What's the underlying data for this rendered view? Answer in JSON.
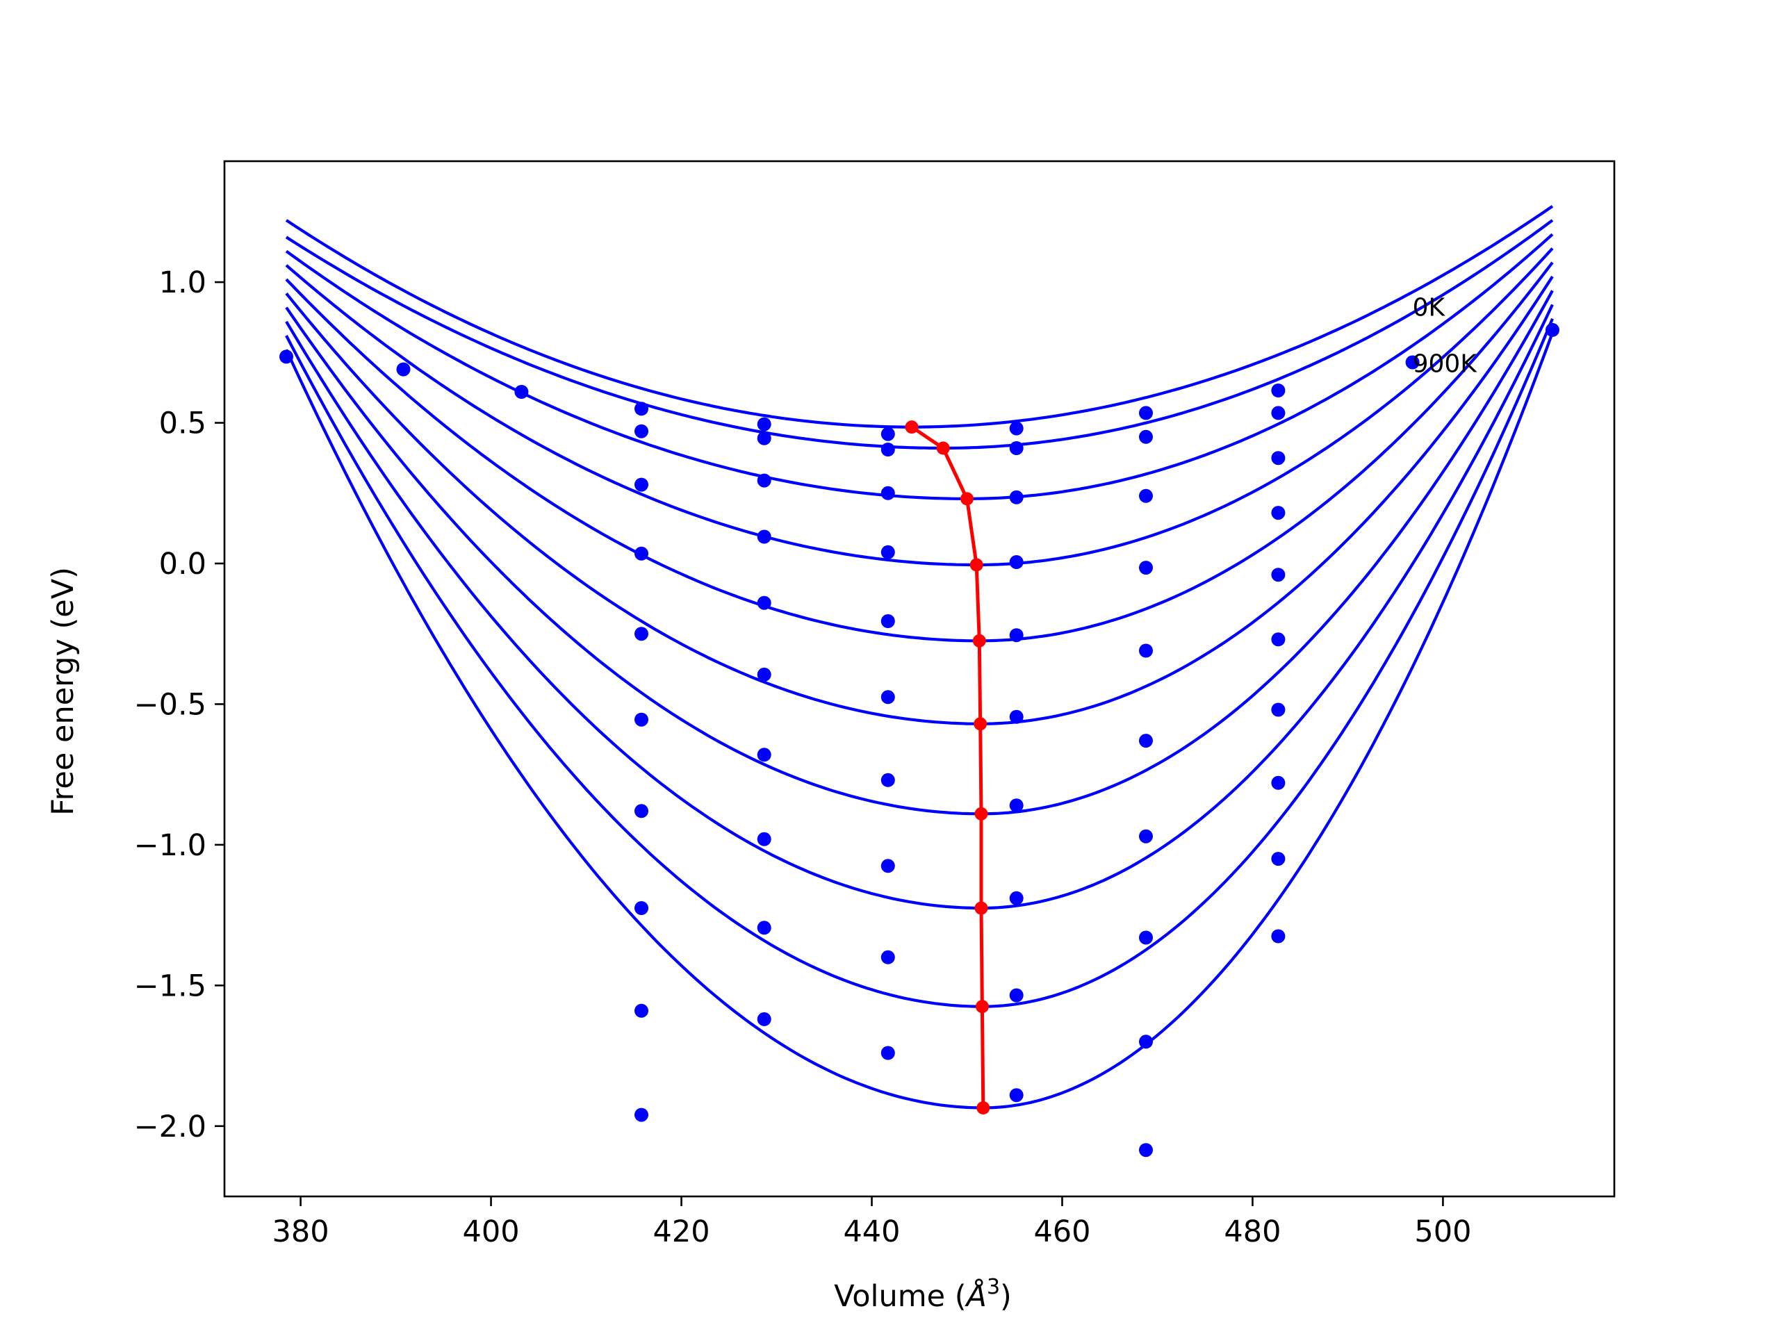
{
  "chart_data": {
    "type": "line",
    "title": "",
    "xlabel": "Volume (",
    "xlabel_symbol": "Å",
    "xlabel_exp": "3",
    "xlabel_close": ")",
    "ylabel": "Free energy (eV)",
    "xlim": [
      372,
      518
    ],
    "ylim": [
      -2.25,
      1.43
    ],
    "xticks": [
      380,
      400,
      420,
      440,
      460,
      480,
      500
    ],
    "xtick_labels": [
      "380",
      "400",
      "420",
      "440",
      "460",
      "480",
      "500"
    ],
    "yticks": [
      1.0,
      0.5,
      0.0,
      -0.5,
      -1.0,
      -1.5,
      -2.0
    ],
    "ytick_labels": [
      "1.0",
      "0.5",
      "0.0",
      "−0.5",
      "−1.0",
      "−1.5",
      "−2.0"
    ],
    "grid": false,
    "annotations": [
      {
        "text": "0K",
        "x": 496.8,
        "y": 0.88
      },
      {
        "text": "900K",
        "x": 496.8,
        "y": 0.68
      }
    ],
    "colors": {
      "curves": "#0000ff",
      "points": "#0000ff",
      "minimum_path": "#ff0000",
      "axes": "#000000"
    },
    "fit_x_range": [
      378.5,
      511.5
    ],
    "curves": [
      {
        "label": "0K",
        "min_volume": 444.2,
        "min_energy": 0.485,
        "left_energy": 1.22,
        "right_energy": 1.27
      },
      {
        "min_volume": 447.5,
        "min_energy": 0.41,
        "left_energy": 1.16,
        "right_energy": 1.22
      },
      {
        "min_volume": 450.0,
        "min_energy": 0.23,
        "left_energy": 1.11,
        "right_energy": 1.17
      },
      {
        "min_volume": 451.0,
        "min_energy": -0.005,
        "left_energy": 1.06,
        "right_energy": 1.12
      },
      {
        "min_volume": 451.3,
        "min_energy": -0.275,
        "left_energy": 1.01,
        "right_energy": 1.07
      },
      {
        "min_volume": 451.4,
        "min_energy": -0.57,
        "left_energy": 0.96,
        "right_energy": 1.02
      },
      {
        "min_volume": 451.5,
        "min_energy": -0.89,
        "left_energy": 0.91,
        "right_energy": 0.97
      },
      {
        "min_volume": 451.5,
        "min_energy": -1.225,
        "left_energy": 0.86,
        "right_energy": 0.92
      },
      {
        "min_volume": 451.6,
        "min_energy": -1.575,
        "left_energy": 0.81,
        "right_energy": 0.87
      },
      {
        "label": "900K",
        "min_volume": 451.7,
        "min_energy": -1.935,
        "left_energy": 0.76,
        "right_energy": 0.82
      }
    ],
    "points": [
      {
        "x": 378.5,
        "y": 0.735
      },
      {
        "x": 390.8,
        "y": 0.69
      },
      {
        "x": 403.2,
        "y": 0.61
      },
      {
        "x": 415.8,
        "y": 0.55
      },
      {
        "x": 415.8,
        "y": 0.47
      },
      {
        "x": 415.8,
        "y": 0.28
      },
      {
        "x": 415.8,
        "y": 0.035
      },
      {
        "x": 415.8,
        "y": -0.25
      },
      {
        "x": 415.8,
        "y": -0.555
      },
      {
        "x": 415.8,
        "y": -0.88
      },
      {
        "x": 415.8,
        "y": -1.225
      },
      {
        "x": 415.8,
        "y": -1.59
      },
      {
        "x": 415.8,
        "y": -1.96
      },
      {
        "x": 428.7,
        "y": 0.495
      },
      {
        "x": 428.7,
        "y": 0.445
      },
      {
        "x": 428.7,
        "y": 0.295
      },
      {
        "x": 428.7,
        "y": 0.095
      },
      {
        "x": 428.7,
        "y": -0.14
      },
      {
        "x": 428.7,
        "y": -0.395
      },
      {
        "x": 428.7,
        "y": -0.68
      },
      {
        "x": 428.7,
        "y": -0.98
      },
      {
        "x": 428.7,
        "y": -1.295
      },
      {
        "x": 428.7,
        "y": -1.62
      },
      {
        "x": 441.7,
        "y": 0.46
      },
      {
        "x": 441.7,
        "y": 0.405
      },
      {
        "x": 441.7,
        "y": 0.25
      },
      {
        "x": 441.7,
        "y": 0.04
      },
      {
        "x": 441.7,
        "y": -0.205
      },
      {
        "x": 441.7,
        "y": -0.475
      },
      {
        "x": 441.7,
        "y": -0.77
      },
      {
        "x": 441.7,
        "y": -1.075
      },
      {
        "x": 441.7,
        "y": -1.4
      },
      {
        "x": 441.7,
        "y": -1.74
      },
      {
        "x": 455.2,
        "y": 0.48
      },
      {
        "x": 455.2,
        "y": 0.41
      },
      {
        "x": 455.2,
        "y": 0.235
      },
      {
        "x": 455.2,
        "y": 0.005
      },
      {
        "x": 455.2,
        "y": -0.255
      },
      {
        "x": 455.2,
        "y": -0.545
      },
      {
        "x": 455.2,
        "y": -0.86
      },
      {
        "x": 455.2,
        "y": -1.19
      },
      {
        "x": 455.2,
        "y": -1.535
      },
      {
        "x": 455.2,
        "y": -1.89
      },
      {
        "x": 468.8,
        "y": 0.535
      },
      {
        "x": 468.8,
        "y": 0.45
      },
      {
        "x": 468.8,
        "y": 0.24
      },
      {
        "x": 468.8,
        "y": -0.015
      },
      {
        "x": 468.8,
        "y": -0.31
      },
      {
        "x": 468.8,
        "y": -0.63
      },
      {
        "x": 468.8,
        "y": -0.97
      },
      {
        "x": 468.8,
        "y": -1.33
      },
      {
        "x": 468.8,
        "y": -1.7
      },
      {
        "x": 468.8,
        "y": -2.085
      },
      {
        "x": 482.7,
        "y": 0.615
      },
      {
        "x": 482.7,
        "y": 0.535
      },
      {
        "x": 482.7,
        "y": 0.375
      },
      {
        "x": 482.7,
        "y": 0.18
      },
      {
        "x": 482.7,
        "y": -0.04
      },
      {
        "x": 482.7,
        "y": -0.27
      },
      {
        "x": 482.7,
        "y": -0.52
      },
      {
        "x": 482.7,
        "y": -0.78
      },
      {
        "x": 482.7,
        "y": -1.05
      },
      {
        "x": 482.7,
        "y": -1.325
      },
      {
        "x": 496.8,
        "y": 0.715
      },
      {
        "x": 511.5,
        "y": 0.83
      }
    ],
    "minimum_path": {
      "x": [
        444.2,
        447.5,
        450.0,
        451.0,
        451.3,
        451.4,
        451.5,
        451.5,
        451.6,
        451.7
      ],
      "y": [
        0.485,
        0.41,
        0.23,
        -0.005,
        -0.275,
        -0.57,
        -0.89,
        -1.225,
        -1.575,
        -1.935
      ]
    }
  }
}
